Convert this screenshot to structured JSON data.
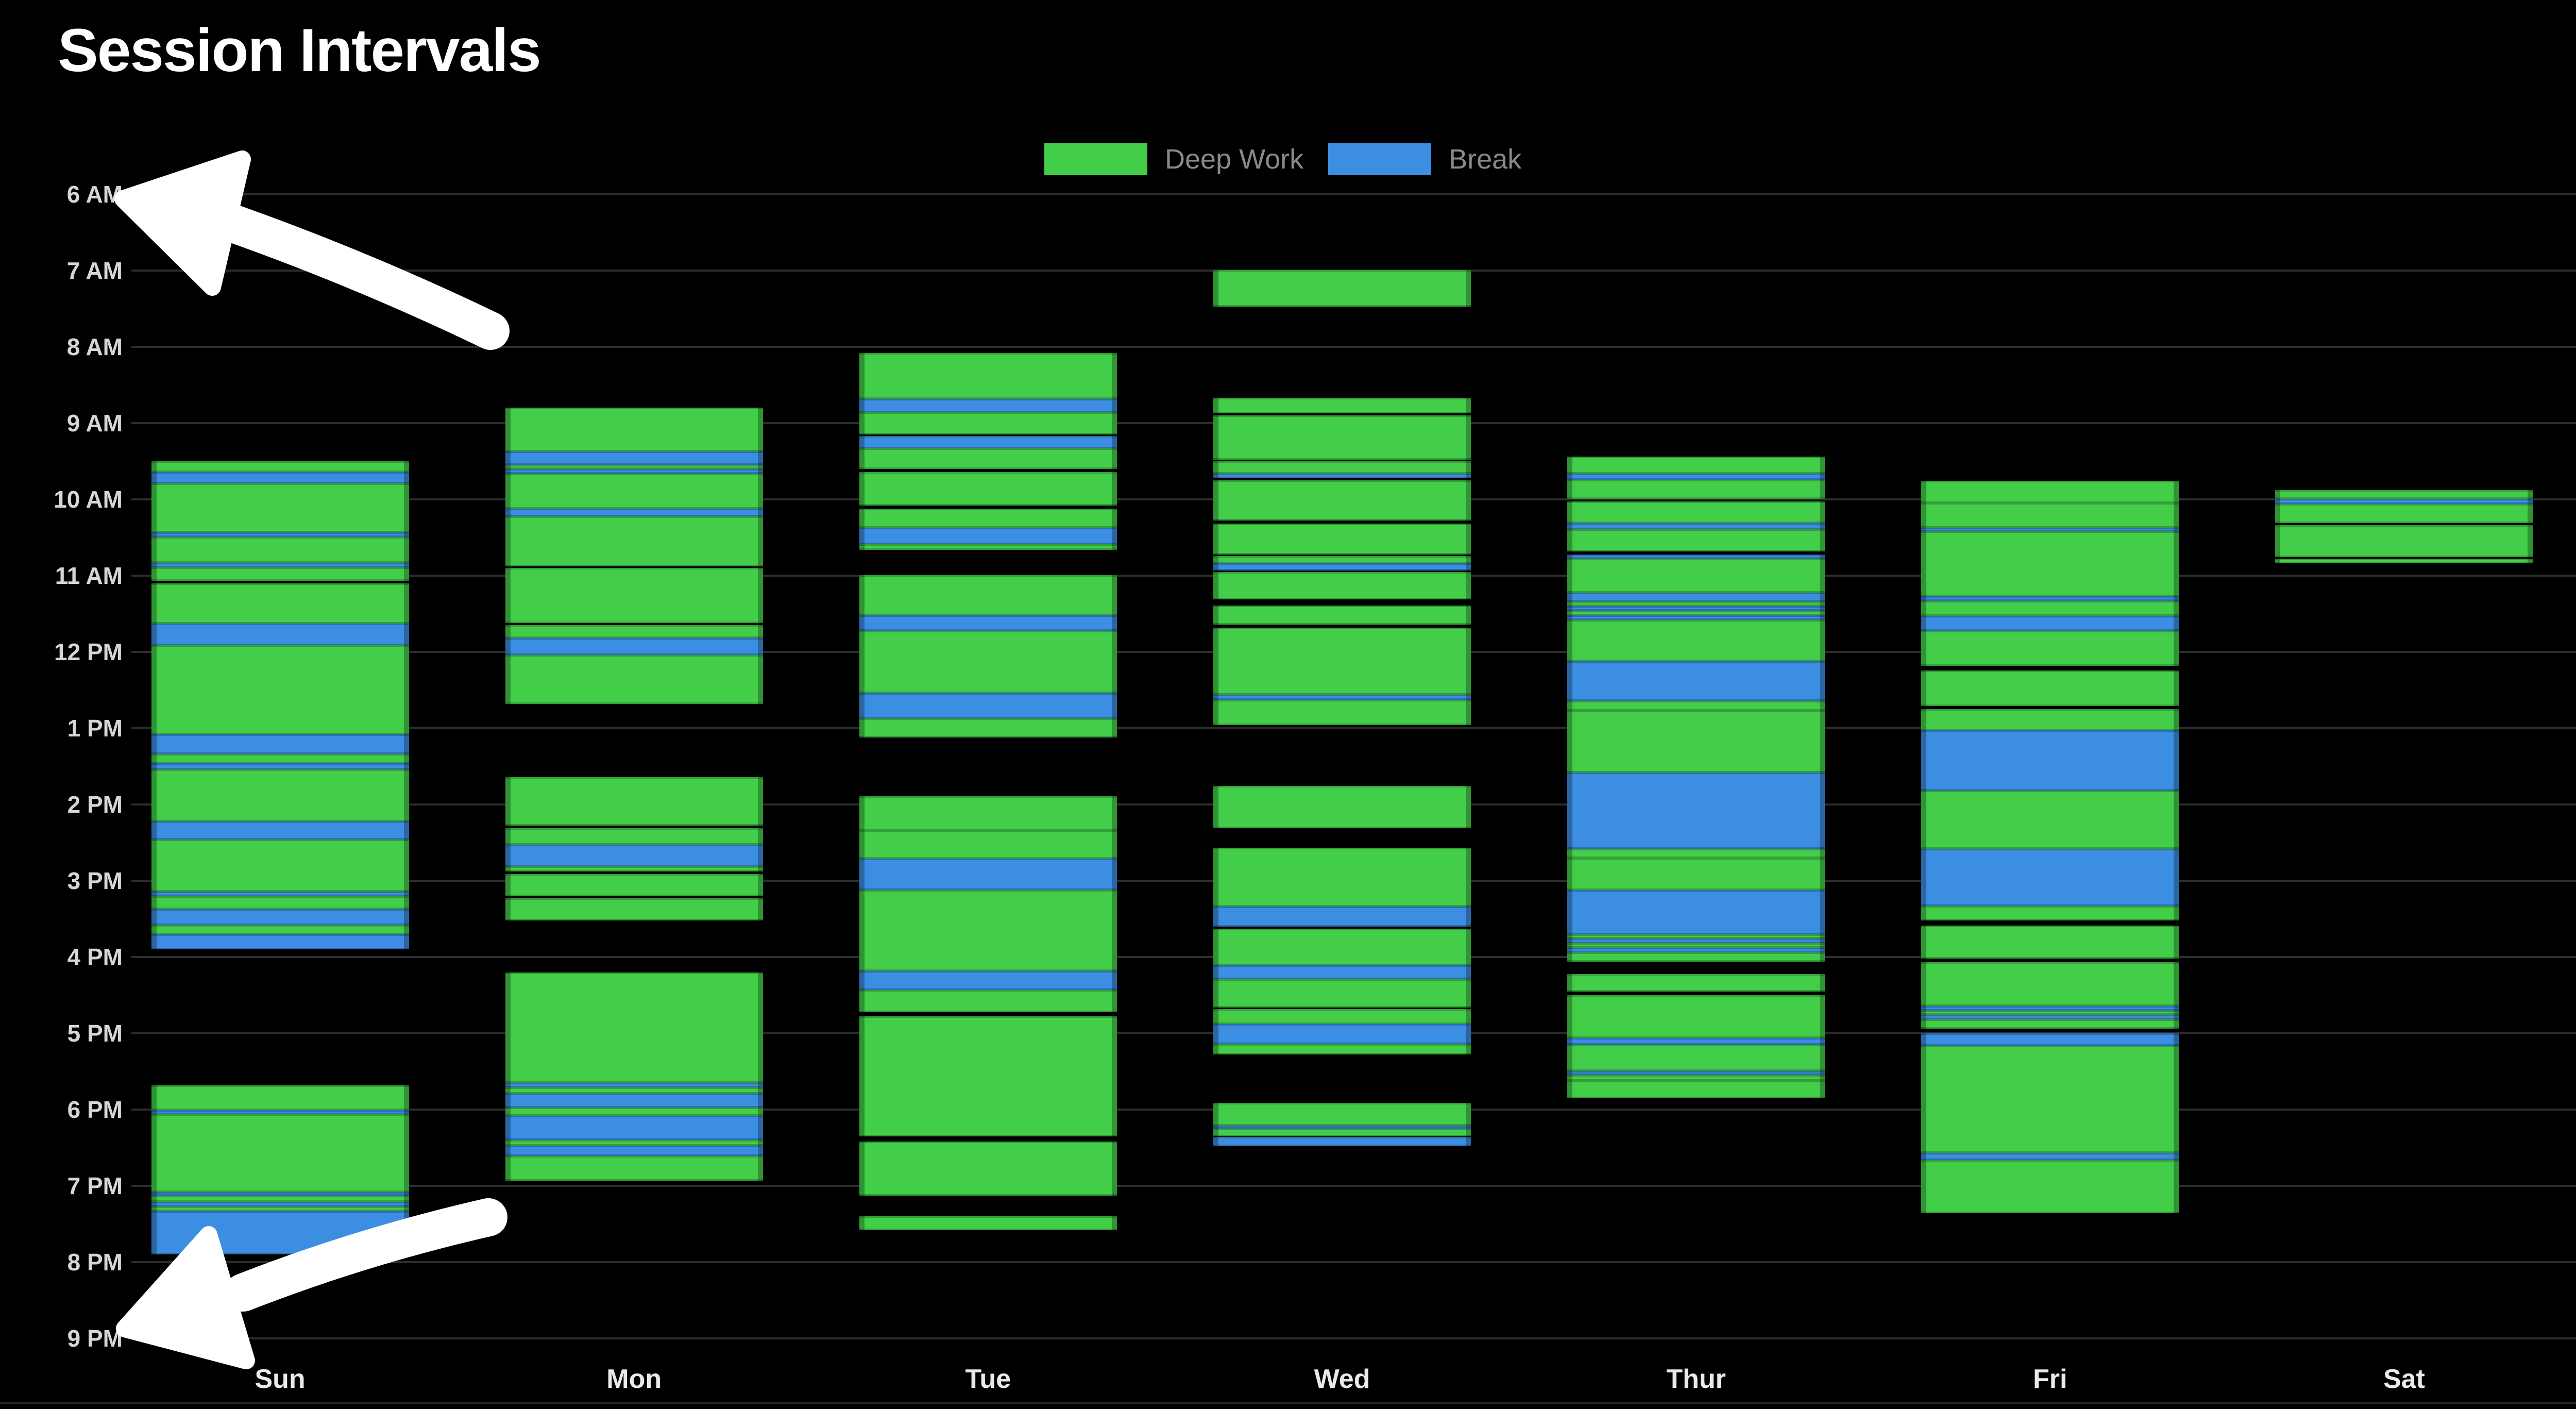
{
  "title": "Session Intervals",
  "legend": {
    "items": [
      {
        "key": "deep",
        "label": "Deep Work",
        "color": "#43ce49"
      },
      {
        "key": "break",
        "label": "Break",
        "color": "#3c8ee2"
      }
    ]
  },
  "annotations": {
    "arrows": [
      {
        "name": "arrow-to-6am",
        "points_to": "6 AM",
        "color": "#ffffff"
      },
      {
        "name": "arrow-to-9pm",
        "points_to": "9 PM",
        "color": "#ffffff"
      }
    ]
  },
  "chart_data": {
    "type": "gantt",
    "title": "Session Intervals",
    "x_categories": [
      "Sun",
      "Mon",
      "Tue",
      "Wed",
      "Thur",
      "Fri",
      "Sat"
    ],
    "y_axis": {
      "tick_labels": [
        "6 AM",
        "7 AM",
        "8 AM",
        "9 AM",
        "10 AM",
        "11 AM",
        "12 PM",
        "1 PM",
        "2 PM",
        "3 PM",
        "4 PM",
        "5 PM",
        "6 PM",
        "7 PM",
        "8 PM",
        "9 PM"
      ],
      "start_hour": 6,
      "end_hour": 21,
      "grid": true
    },
    "legend_position": "top-center",
    "series": [
      {
        "key": "deep",
        "name": "Deep Work",
        "color": "#43ce49"
      },
      {
        "key": "break",
        "name": "Break",
        "color": "#3c8ee2"
      }
    ],
    "intervals": [
      {
        "day": "Sun",
        "type": "deep",
        "start": 9.5,
        "end": 9.64
      },
      {
        "day": "Sun",
        "type": "break",
        "start": 9.64,
        "end": 9.79
      },
      {
        "day": "Sun",
        "type": "deep",
        "start": 9.79,
        "end": 10.43
      },
      {
        "day": "Sun",
        "type": "break",
        "start": 10.43,
        "end": 10.49
      },
      {
        "day": "Sun",
        "type": "deep",
        "start": 10.49,
        "end": 10.83
      },
      {
        "day": "Sun",
        "type": "break",
        "start": 10.83,
        "end": 10.89
      },
      {
        "day": "Sun",
        "type": "deep",
        "start": 10.89,
        "end": 11.07
      },
      {
        "day": "Sun",
        "type": "deep",
        "start": 11.1,
        "end": 11.63
      },
      {
        "day": "Sun",
        "type": "break",
        "start": 11.63,
        "end": 11.91
      },
      {
        "day": "Sun",
        "type": "deep",
        "start": 11.91,
        "end": 13.08
      },
      {
        "day": "Sun",
        "type": "break",
        "start": 13.08,
        "end": 13.34
      },
      {
        "day": "Sun",
        "type": "deep",
        "start": 13.34,
        "end": 13.46
      },
      {
        "day": "Sun",
        "type": "break",
        "start": 13.46,
        "end": 13.54
      },
      {
        "day": "Sun",
        "type": "deep",
        "start": 13.54,
        "end": 14.22
      },
      {
        "day": "Sun",
        "type": "break",
        "start": 14.22,
        "end": 14.46
      },
      {
        "day": "Sun",
        "type": "deep",
        "start": 14.46,
        "end": 15.14
      },
      {
        "day": "Sun",
        "type": "break",
        "start": 15.14,
        "end": 15.2
      },
      {
        "day": "Sun",
        "type": "deep",
        "start": 15.2,
        "end": 15.37
      },
      {
        "day": "Sun",
        "type": "break",
        "start": 15.37,
        "end": 15.58
      },
      {
        "day": "Sun",
        "type": "deep",
        "start": 15.58,
        "end": 15.7
      },
      {
        "day": "Sun",
        "type": "break",
        "start": 15.7,
        "end": 15.9
      },
      {
        "day": "Sun",
        "type": "deep",
        "start": 17.68,
        "end": 18.01
      },
      {
        "day": "Sun",
        "type": "break",
        "start": 18.01,
        "end": 18.06
      },
      {
        "day": "Sun",
        "type": "deep",
        "start": 18.06,
        "end": 19.08
      },
      {
        "day": "Sun",
        "type": "break",
        "start": 19.08,
        "end": 19.13
      },
      {
        "day": "Sun",
        "type": "deep",
        "start": 19.13,
        "end": 19.21
      },
      {
        "day": "Sun",
        "type": "break",
        "start": 19.21,
        "end": 19.27
      },
      {
        "day": "Sun",
        "type": "deep",
        "start": 19.27,
        "end": 19.33
      },
      {
        "day": "Sun",
        "type": "break",
        "start": 19.33,
        "end": 19.9
      },
      {
        "day": "Mon",
        "type": "deep",
        "start": 8.8,
        "end": 9.37
      },
      {
        "day": "Mon",
        "type": "break",
        "start": 9.37,
        "end": 9.55
      },
      {
        "day": "Mon",
        "type": "deep",
        "start": 9.55,
        "end": 9.6
      },
      {
        "day": "Mon",
        "type": "break",
        "start": 9.6,
        "end": 9.66
      },
      {
        "day": "Mon",
        "type": "deep",
        "start": 9.66,
        "end": 10.12
      },
      {
        "day": "Mon",
        "type": "break",
        "start": 10.12,
        "end": 10.22
      },
      {
        "day": "Mon",
        "type": "deep",
        "start": 10.22,
        "end": 10.88
      },
      {
        "day": "Mon",
        "type": "deep",
        "start": 10.9,
        "end": 11.62
      },
      {
        "day": "Mon",
        "type": "deep",
        "start": 11.65,
        "end": 11.82
      },
      {
        "day": "Mon",
        "type": "break",
        "start": 11.82,
        "end": 12.04
      },
      {
        "day": "Mon",
        "type": "deep",
        "start": 12.04,
        "end": 12.68
      },
      {
        "day": "Mon",
        "type": "deep",
        "start": 13.64,
        "end": 14.28
      },
      {
        "day": "Mon",
        "type": "deep",
        "start": 14.31,
        "end": 14.53
      },
      {
        "day": "Mon",
        "type": "break",
        "start": 14.53,
        "end": 14.81
      },
      {
        "day": "Mon",
        "type": "deep",
        "start": 14.81,
        "end": 14.88
      },
      {
        "day": "Mon",
        "type": "deep",
        "start": 14.91,
        "end": 15.2
      },
      {
        "day": "Mon",
        "type": "deep",
        "start": 15.23,
        "end": 15.52
      },
      {
        "day": "Mon",
        "type": "deep",
        "start": 16.2,
        "end": 17.65
      },
      {
        "day": "Mon",
        "type": "break",
        "start": 17.65,
        "end": 17.71
      },
      {
        "day": "Mon",
        "type": "deep",
        "start": 17.71,
        "end": 17.79
      },
      {
        "day": "Mon",
        "type": "break",
        "start": 17.79,
        "end": 17.97
      },
      {
        "day": "Mon",
        "type": "deep",
        "start": 17.97,
        "end": 18.08
      },
      {
        "day": "Mon",
        "type": "break",
        "start": 18.08,
        "end": 18.4
      },
      {
        "day": "Mon",
        "type": "deep",
        "start": 18.4,
        "end": 18.47
      },
      {
        "day": "Mon",
        "type": "break",
        "start": 18.47,
        "end": 18.61
      },
      {
        "day": "Mon",
        "type": "deep",
        "start": 18.61,
        "end": 18.93
      },
      {
        "day": "Tue",
        "type": "deep",
        "start": 8.08,
        "end": 8.68
      },
      {
        "day": "Tue",
        "type": "break",
        "start": 8.68,
        "end": 8.86
      },
      {
        "day": "Tue",
        "type": "deep",
        "start": 8.86,
        "end": 9.15
      },
      {
        "day": "Tue",
        "type": "break",
        "start": 9.17,
        "end": 9.33
      },
      {
        "day": "Tue",
        "type": "deep",
        "start": 9.33,
        "end": 9.6
      },
      {
        "day": "Tue",
        "type": "deep",
        "start": 9.64,
        "end": 10.08
      },
      {
        "day": "Tue",
        "type": "deep",
        "start": 10.12,
        "end": 10.37
      },
      {
        "day": "Tue",
        "type": "break",
        "start": 10.37,
        "end": 10.59
      },
      {
        "day": "Tue",
        "type": "deep",
        "start": 10.59,
        "end": 10.66
      },
      {
        "day": "Tue",
        "type": "deep",
        "start": 10.99,
        "end": 11.52
      },
      {
        "day": "Tue",
        "type": "break",
        "start": 11.52,
        "end": 11.72
      },
      {
        "day": "Tue",
        "type": "deep",
        "start": 11.72,
        "end": 12.54
      },
      {
        "day": "Tue",
        "type": "break",
        "start": 12.54,
        "end": 12.87
      },
      {
        "day": "Tue",
        "type": "deep",
        "start": 12.87,
        "end": 13.12
      },
      {
        "day": "Tue",
        "type": "deep",
        "start": 13.89,
        "end": 14.34
      },
      {
        "day": "Tue",
        "type": "deep",
        "start": 14.34,
        "end": 14.71
      },
      {
        "day": "Tue",
        "type": "break",
        "start": 14.71,
        "end": 15.12
      },
      {
        "day": "Tue",
        "type": "deep",
        "start": 15.12,
        "end": 16.18
      },
      {
        "day": "Tue",
        "type": "break",
        "start": 16.18,
        "end": 16.43
      },
      {
        "day": "Tue",
        "type": "deep",
        "start": 16.43,
        "end": 16.72
      },
      {
        "day": "Tue",
        "type": "deep",
        "start": 16.78,
        "end": 18.35
      },
      {
        "day": "Tue",
        "type": "deep",
        "start": 18.42,
        "end": 19.13
      },
      {
        "day": "Tue",
        "type": "deep",
        "start": 19.4,
        "end": 19.58
      },
      {
        "day": "Wed",
        "type": "deep",
        "start": 6.99,
        "end": 7.47
      },
      {
        "day": "Wed",
        "type": "deep",
        "start": 8.67,
        "end": 8.87
      },
      {
        "day": "Wed",
        "type": "deep",
        "start": 8.9,
        "end": 9.48
      },
      {
        "day": "Wed",
        "type": "deep",
        "start": 9.5,
        "end": 9.66
      },
      {
        "day": "Wed",
        "type": "break",
        "start": 9.66,
        "end": 9.72
      },
      {
        "day": "Wed",
        "type": "deep",
        "start": 9.75,
        "end": 10.28
      },
      {
        "day": "Wed",
        "type": "deep",
        "start": 10.32,
        "end": 10.72
      },
      {
        "day": "Wed",
        "type": "deep",
        "start": 10.74,
        "end": 10.84
      },
      {
        "day": "Wed",
        "type": "break",
        "start": 10.84,
        "end": 10.93
      },
      {
        "day": "Wed",
        "type": "deep",
        "start": 10.95,
        "end": 11.31
      },
      {
        "day": "Wed",
        "type": "deep",
        "start": 11.39,
        "end": 11.64
      },
      {
        "day": "Wed",
        "type": "deep",
        "start": 11.68,
        "end": 12.56
      },
      {
        "day": "Wed",
        "type": "break",
        "start": 12.56,
        "end": 12.63
      },
      {
        "day": "Wed",
        "type": "deep",
        "start": 12.63,
        "end": 12.96
      },
      {
        "day": "Wed",
        "type": "deep",
        "start": 13.76,
        "end": 14.31
      },
      {
        "day": "Wed",
        "type": "deep",
        "start": 14.57,
        "end": 15.34
      },
      {
        "day": "Wed",
        "type": "break",
        "start": 15.34,
        "end": 15.6
      },
      {
        "day": "Wed",
        "type": "deep",
        "start": 15.63,
        "end": 16.11
      },
      {
        "day": "Wed",
        "type": "break",
        "start": 16.11,
        "end": 16.29
      },
      {
        "day": "Wed",
        "type": "deep",
        "start": 16.29,
        "end": 16.66
      },
      {
        "day": "Wed",
        "type": "deep",
        "start": 16.68,
        "end": 16.88
      },
      {
        "day": "Wed",
        "type": "break",
        "start": 16.88,
        "end": 17.14
      },
      {
        "day": "Wed",
        "type": "deep",
        "start": 17.14,
        "end": 17.28
      },
      {
        "day": "Wed",
        "type": "deep",
        "start": 17.91,
        "end": 18.21
      },
      {
        "day": "Wed",
        "type": "break",
        "start": 18.21,
        "end": 18.25
      },
      {
        "day": "Wed",
        "type": "deep",
        "start": 18.25,
        "end": 18.35
      },
      {
        "day": "Wed",
        "type": "break",
        "start": 18.36,
        "end": 18.48
      },
      {
        "day": "Thur",
        "type": "deep",
        "start": 9.44,
        "end": 9.66
      },
      {
        "day": "Thur",
        "type": "break",
        "start": 9.66,
        "end": 9.74
      },
      {
        "day": "Thur",
        "type": "deep",
        "start": 9.74,
        "end": 9.99
      },
      {
        "day": "Thur",
        "type": "deep",
        "start": 10.03,
        "end": 10.31
      },
      {
        "day": "Thur",
        "type": "break",
        "start": 10.31,
        "end": 10.39
      },
      {
        "day": "Thur",
        "type": "deep",
        "start": 10.39,
        "end": 10.68
      },
      {
        "day": "Thur",
        "type": "break",
        "start": 10.72,
        "end": 10.78
      },
      {
        "day": "Thur",
        "type": "deep",
        "start": 10.78,
        "end": 11.22
      },
      {
        "day": "Thur",
        "type": "break",
        "start": 11.22,
        "end": 11.34
      },
      {
        "day": "Thur",
        "type": "deep",
        "start": 11.34,
        "end": 11.4
      },
      {
        "day": "Thur",
        "type": "break",
        "start": 11.4,
        "end": 11.46
      },
      {
        "day": "Thur",
        "type": "deep",
        "start": 11.46,
        "end": 11.52
      },
      {
        "day": "Thur",
        "type": "break",
        "start": 11.52,
        "end": 11.58
      },
      {
        "day": "Thur",
        "type": "deep",
        "start": 11.58,
        "end": 12.12
      },
      {
        "day": "Thur",
        "type": "break",
        "start": 12.12,
        "end": 12.64
      },
      {
        "day": "Thur",
        "type": "deep",
        "start": 12.64,
        "end": 12.77
      },
      {
        "day": "Thur",
        "type": "deep",
        "start": 12.77,
        "end": 13.58
      },
      {
        "day": "Thur",
        "type": "break",
        "start": 13.58,
        "end": 14.58
      },
      {
        "day": "Thur",
        "type": "deep",
        "start": 14.58,
        "end": 14.7
      },
      {
        "day": "Thur",
        "type": "deep",
        "start": 14.7,
        "end": 15.12
      },
      {
        "day": "Thur",
        "type": "break",
        "start": 15.12,
        "end": 15.7
      },
      {
        "day": "Thur",
        "type": "deep",
        "start": 15.7,
        "end": 15.76
      },
      {
        "day": "Thur",
        "type": "break",
        "start": 15.76,
        "end": 15.82
      },
      {
        "day": "Thur",
        "type": "deep",
        "start": 15.82,
        "end": 15.88
      },
      {
        "day": "Thur",
        "type": "break",
        "start": 15.88,
        "end": 15.94
      },
      {
        "day": "Thur",
        "type": "deep",
        "start": 15.94,
        "end": 16.06
      },
      {
        "day": "Thur",
        "type": "deep",
        "start": 16.22,
        "end": 16.45
      },
      {
        "day": "Thur",
        "type": "deep",
        "start": 16.5,
        "end": 17.06
      },
      {
        "day": "Thur",
        "type": "break",
        "start": 17.06,
        "end": 17.15
      },
      {
        "day": "Thur",
        "type": "deep",
        "start": 17.15,
        "end": 17.49
      },
      {
        "day": "Thur",
        "type": "break",
        "start": 17.49,
        "end": 17.55
      },
      {
        "day": "Thur",
        "type": "deep",
        "start": 17.55,
        "end": 17.62
      },
      {
        "day": "Thur",
        "type": "deep",
        "start": 17.62,
        "end": 17.85
      },
      {
        "day": "Fri",
        "type": "deep",
        "start": 9.76,
        "end": 10.05
      },
      {
        "day": "Fri",
        "type": "deep",
        "start": 10.05,
        "end": 10.37
      },
      {
        "day": "Fri",
        "type": "break",
        "start": 10.37,
        "end": 10.42
      },
      {
        "day": "Fri",
        "type": "deep",
        "start": 10.42,
        "end": 11.27
      },
      {
        "day": "Fri",
        "type": "break",
        "start": 11.27,
        "end": 11.33
      },
      {
        "day": "Fri",
        "type": "deep",
        "start": 11.33,
        "end": 11.53
      },
      {
        "day": "Fri",
        "type": "break",
        "start": 11.53,
        "end": 11.72
      },
      {
        "day": "Fri",
        "type": "deep",
        "start": 11.72,
        "end": 12.18
      },
      {
        "day": "Fri",
        "type": "deep",
        "start": 12.24,
        "end": 12.71
      },
      {
        "day": "Fri",
        "type": "deep",
        "start": 12.75,
        "end": 13.03
      },
      {
        "day": "Fri",
        "type": "break",
        "start": 13.03,
        "end": 13.82
      },
      {
        "day": "Fri",
        "type": "deep",
        "start": 13.82,
        "end": 14.58
      },
      {
        "day": "Fri",
        "type": "break",
        "start": 14.58,
        "end": 15.33
      },
      {
        "day": "Fri",
        "type": "deep",
        "start": 15.33,
        "end": 15.52
      },
      {
        "day": "Fri",
        "type": "deep",
        "start": 15.59,
        "end": 16.02
      },
      {
        "day": "Fri",
        "type": "deep",
        "start": 16.07,
        "end": 16.64
      },
      {
        "day": "Fri",
        "type": "break",
        "start": 16.64,
        "end": 16.7
      },
      {
        "day": "Fri",
        "type": "deep",
        "start": 16.7,
        "end": 16.76
      },
      {
        "day": "Fri",
        "type": "break",
        "start": 16.76,
        "end": 16.82
      },
      {
        "day": "Fri",
        "type": "deep",
        "start": 16.82,
        "end": 16.94
      },
      {
        "day": "Fri",
        "type": "break",
        "start": 17.0,
        "end": 17.16
      },
      {
        "day": "Fri",
        "type": "deep",
        "start": 17.16,
        "end": 18.57
      },
      {
        "day": "Fri",
        "type": "break",
        "start": 18.57,
        "end": 18.66
      },
      {
        "day": "Fri",
        "type": "deep",
        "start": 18.66,
        "end": 19.36
      },
      {
        "day": "Sat",
        "type": "deep",
        "start": 9.88,
        "end": 9.99
      },
      {
        "day": "Sat",
        "type": "break",
        "start": 9.99,
        "end": 10.06
      },
      {
        "day": "Sat",
        "type": "deep",
        "start": 10.06,
        "end": 10.31
      },
      {
        "day": "Sat",
        "type": "deep",
        "start": 10.34,
        "end": 10.76
      },
      {
        "day": "Sat",
        "type": "deep",
        "start": 10.78,
        "end": 10.84
      }
    ]
  }
}
